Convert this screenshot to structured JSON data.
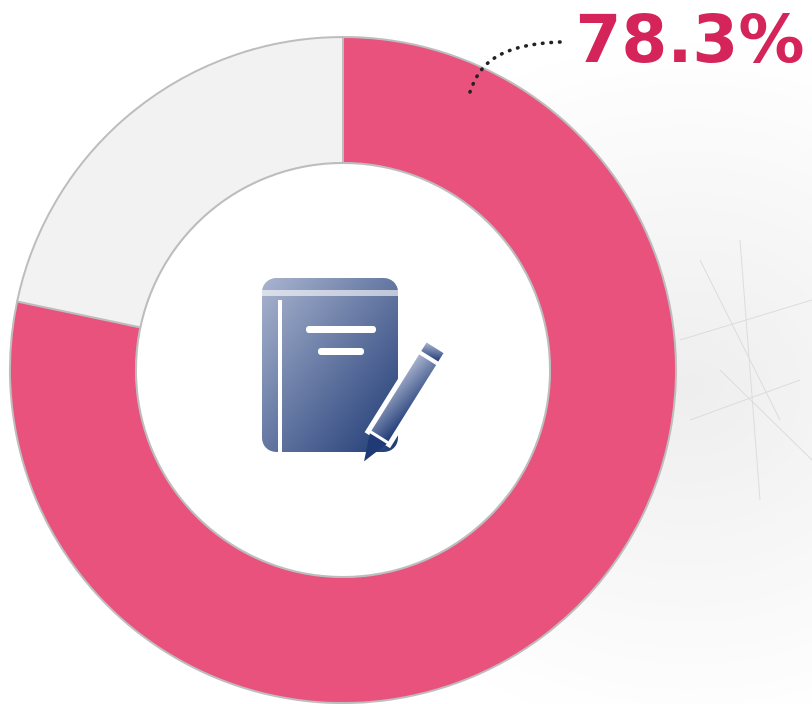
{
  "chart_data": {
    "type": "donut",
    "values": [
      78.3,
      21.7
    ],
    "value_labels": [
      "78.3%",
      null
    ],
    "colors": [
      "#e8527d",
      "#f2f2f2"
    ],
    "label_color": "#d4245a"
  }
}
